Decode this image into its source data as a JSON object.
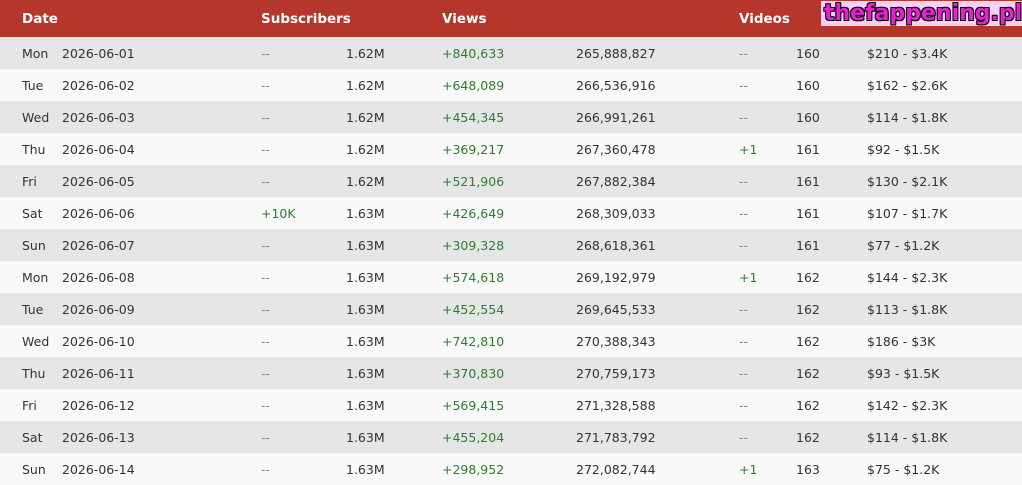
{
  "table": {
    "columns": [
      "Date",
      "Subscribers",
      "Views",
      "Videos"
    ],
    "rows": [
      [
        "Mon",
        "2026-06-01",
        "--",
        "1.62M",
        "+840,633",
        "265,888,827",
        "--",
        "160",
        "$210 - $3.4K"
      ],
      [
        "Tue",
        "2026-06-02",
        "--",
        "1.62M",
        "+648,089",
        "266,536,916",
        "--",
        "160",
        "$162 - $2.6K"
      ],
      [
        "Wed",
        "2026-06-03",
        "--",
        "1.62M",
        "+454,345",
        "266,991,261",
        "--",
        "160",
        "$114 - $1.8K"
      ],
      [
        "Thu",
        "2026-06-04",
        "--",
        "1.62M",
        "+369,217",
        "267,360,478",
        "+1",
        "161",
        "$92 - $1.5K"
      ],
      [
        "Fri",
        "2026-06-05",
        "--",
        "1.62M",
        "+521,906",
        "267,882,384",
        "--",
        "161",
        "$130 - $2.1K"
      ],
      [
        "Sat",
        "2026-06-06",
        "+10K",
        "1.63M",
        "+426,649",
        "268,309,033",
        "--",
        "161",
        "$107 - $1.7K"
      ],
      [
        "Sun",
        "2026-06-07",
        "--",
        "1.63M",
        "+309,328",
        "268,618,361",
        "--",
        "161",
        "$77 - $1.2K"
      ],
      [
        "Mon",
        "2026-06-08",
        "--",
        "1.63M",
        "+574,618",
        "269,192,979",
        "+1",
        "162",
        "$144 - $2.3K"
      ],
      [
        "Tue",
        "2026-06-09",
        "--",
        "1.63M",
        "+452,554",
        "269,645,533",
        "--",
        "162",
        "$113 - $1.8K"
      ],
      [
        "Wed",
        "2026-06-10",
        "--",
        "1.63M",
        "+742,810",
        "270,388,343",
        "--",
        "162",
        "$186 - $3K"
      ],
      [
        "Thu",
        "2026-06-11",
        "--",
        "1.63M",
        "+370,830",
        "270,759,173",
        "--",
        "162",
        "$93 - $1.5K"
      ],
      [
        "Fri",
        "2026-06-12",
        "--",
        "1.63M",
        "+569,415",
        "271,328,588",
        "--",
        "162",
        "$142 - $2.3K"
      ],
      [
        "Sat",
        "2026-06-13",
        "--",
        "1.63M",
        "+455,204",
        "271,783,792",
        "--",
        "162",
        "$114 - $1.8K"
      ],
      [
        "Sun",
        "2026-06-14",
        "--",
        "1.63M",
        "+298,952",
        "272,082,744",
        "+1",
        "163",
        "$75 - $1.2K"
      ]
    ]
  },
  "watermark": "thefappening.plus"
}
